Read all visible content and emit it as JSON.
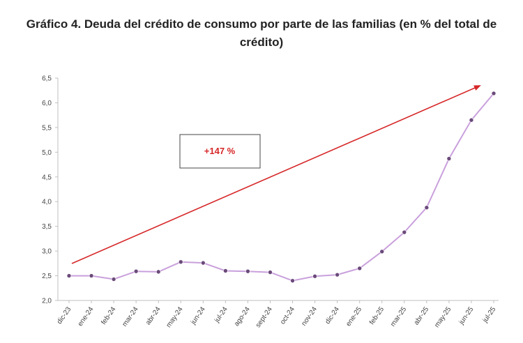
{
  "title": "Gráfico 4. Deuda del crédito de consumo por parte de las familias (en % del total de crédito)",
  "chart_data": {
    "type": "line",
    "title": "Gráfico 4. Deuda del crédito de consumo por parte de las familias (en % del total de crédito)",
    "xlabel": "",
    "ylabel": "",
    "ylim": [
      2.0,
      6.5
    ],
    "yticks": [
      "2,0",
      "2,5",
      "3,0",
      "3,5",
      "4,0",
      "4,5",
      "5,0",
      "5,5",
      "6,0",
      "6,5"
    ],
    "ytick_values": [
      2.0,
      2.5,
      3.0,
      3.5,
      4.0,
      4.5,
      5.0,
      5.5,
      6.0,
      6.5
    ],
    "categories": [
      "dic-23",
      "ene-24",
      "feb-24",
      "mar-24",
      "abr-24",
      "may-24",
      "jun-24",
      "jul-24",
      "ago-24",
      "sept-24",
      "oct-24",
      "nov-24",
      "dic-24",
      "ene-25",
      "feb-25",
      "mar-25",
      "abr-25",
      "may-25",
      "jun-25",
      "jul-25"
    ],
    "series": [
      {
        "values": [
          2.5,
          2.5,
          2.43,
          2.59,
          2.58,
          2.78,
          2.76,
          2.6,
          2.59,
          2.57,
          2.4,
          2.49,
          2.52,
          2.65,
          2.99,
          3.38,
          3.88,
          4.87,
          5.65,
          6.19
        ],
        "color": "#c9a0dc",
        "marker_color": "#6b4a7a"
      }
    ],
    "grid": false,
    "legend": "none",
    "annotation": {
      "text": "+147 %",
      "color": "#d62728",
      "arrow_color": "#d62728"
    }
  }
}
